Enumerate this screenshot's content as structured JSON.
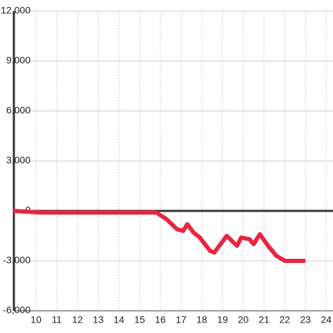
{
  "chart_data": {
    "type": "line",
    "x": [
      8.9,
      10.3,
      15.8,
      16.3,
      16.8,
      17.1,
      17.3,
      17.6,
      17.9,
      18.4,
      18.6,
      19.2,
      19.7,
      19.9,
      20.3,
      20.5,
      20.8,
      21.2,
      21.6,
      22.0,
      22.5,
      23.0
    ],
    "series": [
      {
        "color": "#e8253f",
        "values": [
          0,
          -100,
          -100,
          -500,
          -1100,
          -1200,
          -800,
          -1300,
          -1600,
          -2400,
          -2500,
          -1500,
          -2100,
          -1600,
          -1700,
          -2000,
          -1400,
          -2100,
          -2700,
          -3000,
          -3000,
          -3000
        ]
      }
    ],
    "xlim": [
      8.93,
      24.33
    ],
    "xticks": [
      10,
      11,
      12,
      13,
      14,
      15,
      16,
      17,
      18,
      19,
      20,
      21,
      22,
      23,
      24
    ],
    "ylim": [
      -6000,
      12000
    ],
    "yticks": [
      {
        "value": -6000,
        "label": "-6,000"
      },
      {
        "value": -3000,
        "label": "-3,000"
      },
      0,
      {
        "value": 3000,
        "label": "3,000"
      },
      {
        "value": 6000,
        "label": "6,000"
      },
      {
        "value": 9000,
        "label": "9,000"
      },
      {
        "value": 12000,
        "label": "12,000"
      }
    ],
    "grid": true
  }
}
